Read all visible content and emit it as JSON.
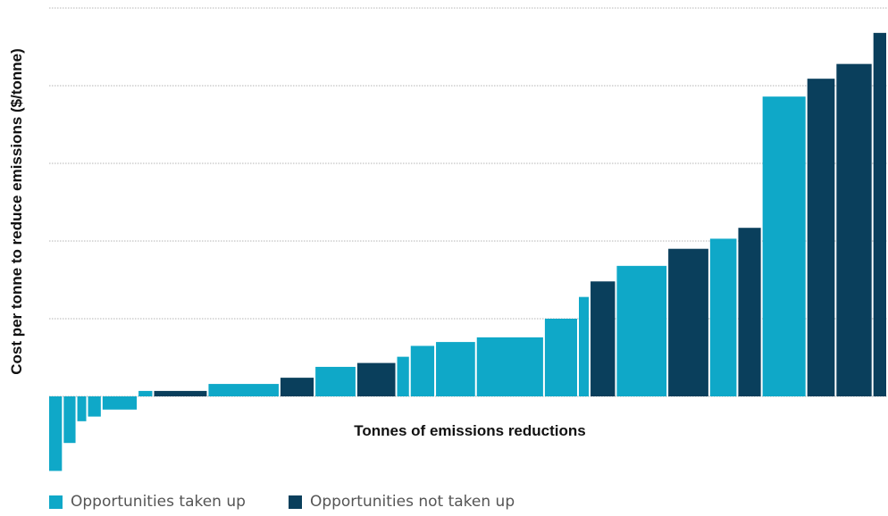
{
  "colors": {
    "taken": "#0fa8c8",
    "not_taken": "#0a3f5c",
    "grid": "#b5b5b5"
  },
  "chart_data": {
    "type": "bar",
    "title": "",
    "xlabel": "Tonnes of emissions reductions",
    "ylabel": "Cost per tonne to reduce emissions ($/tonne)",
    "ylim": [
      -10,
      50
    ],
    "grid": true,
    "legend_position": "bottom-left",
    "series": [
      {
        "name": "Opportunities taken up",
        "key": "taken"
      },
      {
        "name": "Opportunities not taken up",
        "key": "not_taken"
      }
    ],
    "bars": [
      {
        "tonnes": 15,
        "value": -9.6,
        "series": "taken"
      },
      {
        "tonnes": 14,
        "value": -6.0,
        "series": "taken"
      },
      {
        "tonnes": 11,
        "value": -3.2,
        "series": "taken"
      },
      {
        "tonnes": 15,
        "value": -2.6,
        "series": "taken"
      },
      {
        "tonnes": 37,
        "value": -1.7,
        "series": "taken"
      },
      {
        "tonnes": 16,
        "value": 0.7,
        "series": "taken"
      },
      {
        "tonnes": 56,
        "value": 0.7,
        "series": "not_taken"
      },
      {
        "tonnes": 74,
        "value": 1.6,
        "series": "taken"
      },
      {
        "tonnes": 36,
        "value": 2.4,
        "series": "not_taken"
      },
      {
        "tonnes": 43,
        "value": 3.8,
        "series": "taken"
      },
      {
        "tonnes": 41,
        "value": 4.3,
        "series": "not_taken"
      },
      {
        "tonnes": 14,
        "value": 5.1,
        "series": "taken"
      },
      {
        "tonnes": 26,
        "value": 6.5,
        "series": "taken"
      },
      {
        "tonnes": 42,
        "value": 7.0,
        "series": "taken"
      },
      {
        "tonnes": 70,
        "value": 7.6,
        "series": "taken"
      },
      {
        "tonnes": 35,
        "value": 10.0,
        "series": "taken"
      },
      {
        "tonnes": 12,
        "value": 12.8,
        "series": "taken"
      },
      {
        "tonnes": 27,
        "value": 14.8,
        "series": "not_taken"
      },
      {
        "tonnes": 53,
        "value": 16.8,
        "series": "taken"
      },
      {
        "tonnes": 43,
        "value": 19.0,
        "series": "not_taken"
      },
      {
        "tonnes": 29,
        "value": 20.3,
        "series": "taken"
      },
      {
        "tonnes": 25,
        "value": 21.7,
        "series": "not_taken"
      },
      {
        "tonnes": 46,
        "value": 38.6,
        "series": "taken"
      },
      {
        "tonnes": 30,
        "value": 40.9,
        "series": "not_taken"
      },
      {
        "tonnes": 38,
        "value": 42.8,
        "series": "not_taken"
      },
      {
        "tonnes": 15,
        "value": 46.8,
        "series": "not_taken"
      }
    ]
  }
}
